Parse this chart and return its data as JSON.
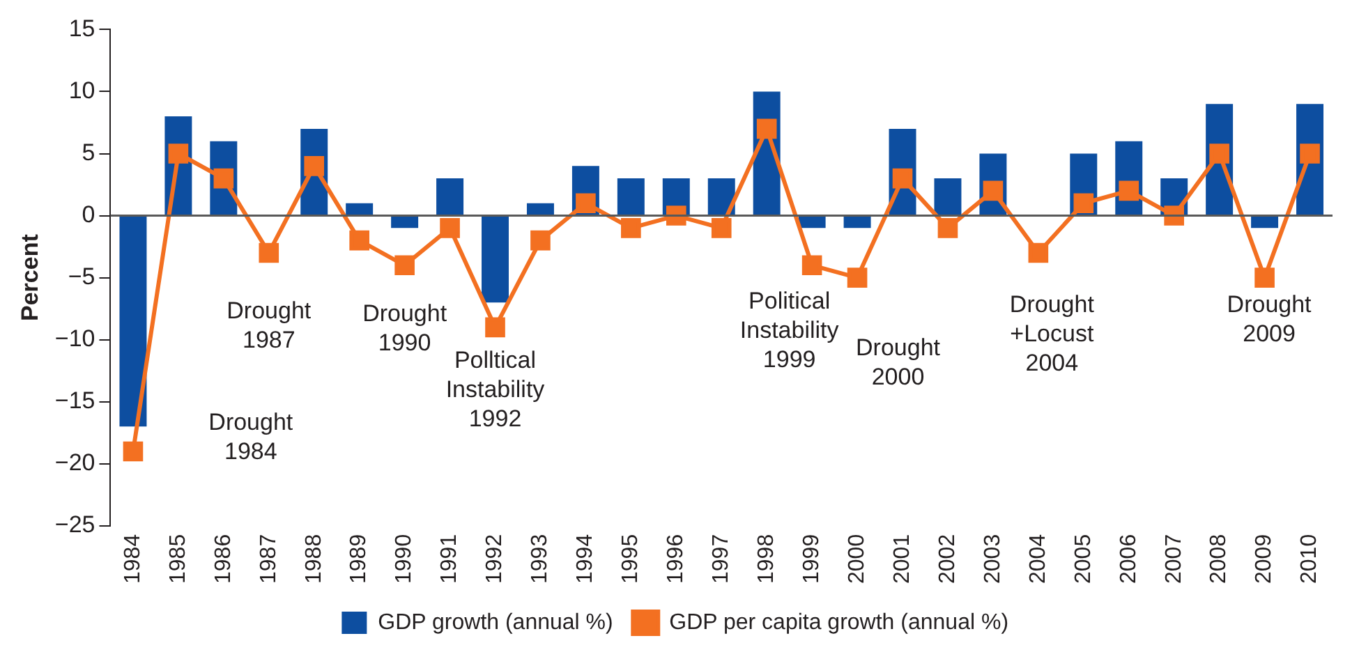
{
  "chart_data": {
    "type": "bar",
    "ylabel": "Percent",
    "categories": [
      "1984",
      "1985",
      "1986",
      "1987",
      "1988",
      "1989",
      "1990",
      "1991",
      "1992",
      "1993",
      "1994",
      "1995",
      "1996",
      "1997",
      "1998",
      "1999",
      "2000",
      "2001",
      "2002",
      "2003",
      "2004",
      "2005",
      "2006",
      "2007",
      "2008",
      "2009",
      "2010"
    ],
    "series": [
      {
        "name": "GDP growth (annual %)",
        "color": "#0d4ea0",
        "values": [
          -17,
          8,
          6,
          0,
          7,
          1,
          -1,
          3,
          -7,
          1,
          4,
          3,
          3,
          3,
          10,
          -1,
          -1,
          7,
          3,
          5,
          0,
          5,
          6,
          3,
          9,
          -1,
          9
        ]
      },
      {
        "name": "GDP per capita growth (annual %)",
        "type": "line",
        "color": "#f37021",
        "marker": "square",
        "values": [
          -19,
          5,
          3,
          -3,
          4,
          -2,
          -4,
          -1,
          -9,
          -2,
          1,
          -1,
          0,
          -1,
          7,
          -4,
          -5,
          3,
          -1,
          2,
          -3,
          1,
          2,
          0,
          5,
          -5,
          5
        ]
      }
    ],
    "ylim": [
      -25,
      15
    ],
    "yticks": [
      {
        "value": -25,
        "label": "−25"
      },
      {
        "value": -20,
        "label": "−20"
      },
      {
        "value": -15,
        "label": "−15"
      },
      {
        "value": -10,
        "label": "−10"
      },
      {
        "value": -5,
        "label": "−5"
      },
      0,
      5,
      10,
      15
    ],
    "ref_lines": [
      {
        "axis": "y",
        "value": 0,
        "color": "#595959"
      }
    ],
    "grid": false,
    "legend": "bottom",
    "annotations": [
      "Drought\n1984",
      "Drought\n1987",
      "Drought\n1990",
      "Polltical\nInstability\n1992",
      "Political\nInstability\n1999",
      "Drought\n2000",
      "Drought\n+Locust\n2004",
      "Drought\n2009"
    ]
  }
}
